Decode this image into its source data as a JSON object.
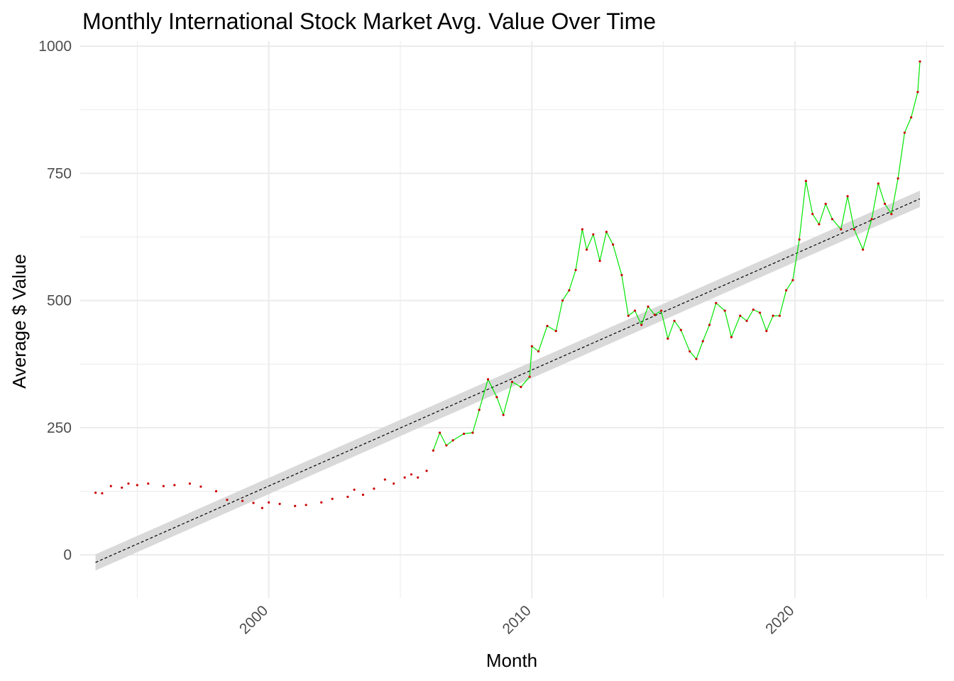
{
  "chart_data": {
    "type": "line",
    "title": "Monthly International Stock Market Avg. Value Over Time",
    "xlabel": "Month",
    "ylabel": "Average $ Value",
    "x_scale": "date",
    "xlim": [
      "1992-11-01",
      "2025-09-01"
    ],
    "ylim": [
      -85,
      1010
    ],
    "x_ticks": [
      {
        "value": "2000-01-01",
        "label": "2000"
      },
      {
        "value": "2010-01-01",
        "label": "2010"
      },
      {
        "value": "2020-01-01",
        "label": "2020"
      }
    ],
    "y_ticks": [
      0,
      250,
      500,
      750,
      1000
    ],
    "grid": true,
    "legend": "none",
    "colors": {
      "line": "#00e600",
      "points": "#cc0000",
      "trend": "#000000",
      "band": "#d9d9d9",
      "grid": "#ebebeb"
    },
    "series": [
      {
        "style": "points-and-line",
        "points": [
          [
            "1993-06-01",
            122
          ],
          [
            "1993-09-01",
            121
          ],
          [
            "1994-01-01",
            135
          ],
          [
            "1994-06-01",
            132
          ],
          [
            "1994-09-01",
            140
          ],
          [
            "1995-01-01",
            137
          ],
          [
            "1995-06-01",
            140
          ],
          [
            "1996-01-01",
            135
          ],
          [
            "1996-06-01",
            137
          ],
          [
            "1997-01-01",
            140
          ],
          [
            "1997-06-01",
            134
          ],
          [
            "1998-01-01",
            125
          ],
          [
            "1998-06-01",
            108
          ],
          [
            "1999-01-01",
            106
          ],
          [
            "1999-06-01",
            102
          ],
          [
            "1999-10-01",
            92
          ],
          [
            "2000-01-01",
            103
          ],
          [
            "2000-06-01",
            100
          ],
          [
            "2001-01-01",
            96
          ],
          [
            "2001-06-01",
            98
          ],
          [
            "2002-01-01",
            103
          ],
          [
            "2002-06-01",
            110
          ],
          [
            "2003-01-01",
            114
          ],
          [
            "2003-04-01",
            128
          ],
          [
            "2003-08-01",
            118
          ],
          [
            "2004-01-01",
            130
          ],
          [
            "2004-06-01",
            148
          ],
          [
            "2004-10-01",
            140
          ],
          [
            "2005-03-01",
            152
          ],
          [
            "2005-06-01",
            158
          ],
          [
            "2005-09-01",
            152
          ],
          [
            "2006-01-01",
            165
          ],
          [
            "2006-04-01",
            205
          ],
          [
            "2006-07-01",
            240
          ],
          [
            "2006-10-01",
            215
          ],
          [
            "2007-01-01",
            225
          ],
          [
            "2007-06-01",
            238
          ],
          [
            "2007-10-01",
            240
          ],
          [
            "2008-01-01",
            285
          ],
          [
            "2008-05-01",
            345
          ],
          [
            "2008-09-01",
            310
          ],
          [
            "2008-12-01",
            275
          ],
          [
            "2009-04-01",
            340
          ],
          [
            "2009-08-01",
            330
          ],
          [
            "2009-12-01",
            350
          ],
          [
            "2010-01-01",
            410
          ],
          [
            "2010-04-01",
            400
          ],
          [
            "2010-08-01",
            450
          ],
          [
            "2010-12-01",
            440
          ],
          [
            "2011-03-01",
            500
          ],
          [
            "2011-06-01",
            520
          ],
          [
            "2011-09-01",
            560
          ],
          [
            "2011-12-01",
            640
          ],
          [
            "2012-02-01",
            600
          ],
          [
            "2012-05-01",
            630
          ],
          [
            "2012-08-01",
            578
          ],
          [
            "2012-11-01",
            635
          ],
          [
            "2013-02-01",
            610
          ],
          [
            "2013-06-01",
            550
          ],
          [
            "2013-09-01",
            470
          ],
          [
            "2013-12-01",
            480
          ],
          [
            "2014-03-01",
            452
          ],
          [
            "2014-06-01",
            488
          ],
          [
            "2014-09-01",
            472
          ],
          [
            "2014-12-01",
            480
          ],
          [
            "2015-03-01",
            425
          ],
          [
            "2015-06-01",
            460
          ],
          [
            "2015-09-01",
            442
          ],
          [
            "2016-01-01",
            400
          ],
          [
            "2016-04-01",
            385
          ],
          [
            "2016-07-01",
            420
          ],
          [
            "2016-10-01",
            452
          ],
          [
            "2017-01-01",
            495
          ],
          [
            "2017-05-01",
            480
          ],
          [
            "2017-08-01",
            428
          ],
          [
            "2017-12-01",
            470
          ],
          [
            "2018-03-01",
            460
          ],
          [
            "2018-06-01",
            482
          ],
          [
            "2018-09-01",
            476
          ],
          [
            "2018-12-01",
            440
          ],
          [
            "2019-03-01",
            470
          ],
          [
            "2019-06-01",
            470
          ],
          [
            "2019-09-01",
            520
          ],
          [
            "2019-12-01",
            540
          ],
          [
            "2020-03-01",
            620
          ],
          [
            "2020-06-01",
            735
          ],
          [
            "2020-09-01",
            670
          ],
          [
            "2020-12-01",
            650
          ],
          [
            "2021-03-01",
            690
          ],
          [
            "2021-06-01",
            660
          ],
          [
            "2021-10-01",
            640
          ],
          [
            "2022-01-01",
            705
          ],
          [
            "2022-04-01",
            640
          ],
          [
            "2022-08-01",
            600
          ],
          [
            "2022-12-01",
            660
          ],
          [
            "2023-03-01",
            730
          ],
          [
            "2023-06-01",
            690
          ],
          [
            "2023-09-01",
            670
          ],
          [
            "2023-12-01",
            740
          ],
          [
            "2024-03-01",
            830
          ],
          [
            "2024-06-01",
            860
          ],
          [
            "2024-09-01",
            910
          ],
          [
            "2024-10-01",
            970
          ]
        ]
      },
      {
        "style": "linear-trend-with-confidence-band",
        "points": [
          [
            "1993-06-01",
            -15
          ],
          [
            "2024-10-01",
            700
          ]
        ],
        "band_halfwidth": 16
      }
    ]
  }
}
